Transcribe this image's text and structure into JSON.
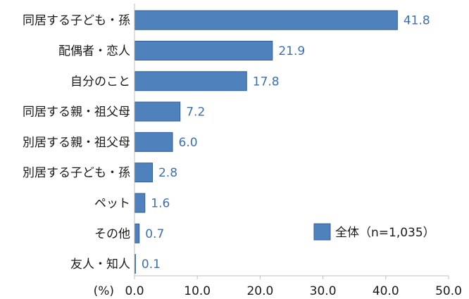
{
  "chart_data": {
    "type": "bar",
    "orientation": "horizontal",
    "categories": [
      "同居する子ども・孫",
      "配偶者・恋人",
      "自分のこと",
      "同居する親・祖父母",
      "別居する親・祖父母",
      "別居する子ども・孫",
      "ペット",
      "その他",
      "友人・知人"
    ],
    "series": [
      {
        "name": "全体（n=1,035）",
        "values": [
          41.8,
          21.9,
          17.8,
          7.2,
          6.0,
          2.8,
          1.6,
          0.7,
          0.1
        ]
      }
    ],
    "value_labels": [
      "41.8",
      "21.9",
      "17.8",
      "7.2",
      "6.0",
      "2.8",
      "1.6",
      "0.7",
      "0.1"
    ],
    "xlim": [
      0,
      50
    ],
    "xticks": [
      "0.0",
      "10.0",
      "20.0",
      "30.0",
      "40.0",
      "50.0"
    ],
    "xunit_label": "(%)",
    "grid": false,
    "legend_position": "bottom-right",
    "colors": {
      "bar": "#4f81bd",
      "bar_edge": "#2f5f96",
      "value_text": "#3d6fb3",
      "axis": "#bfbfbf"
    }
  }
}
